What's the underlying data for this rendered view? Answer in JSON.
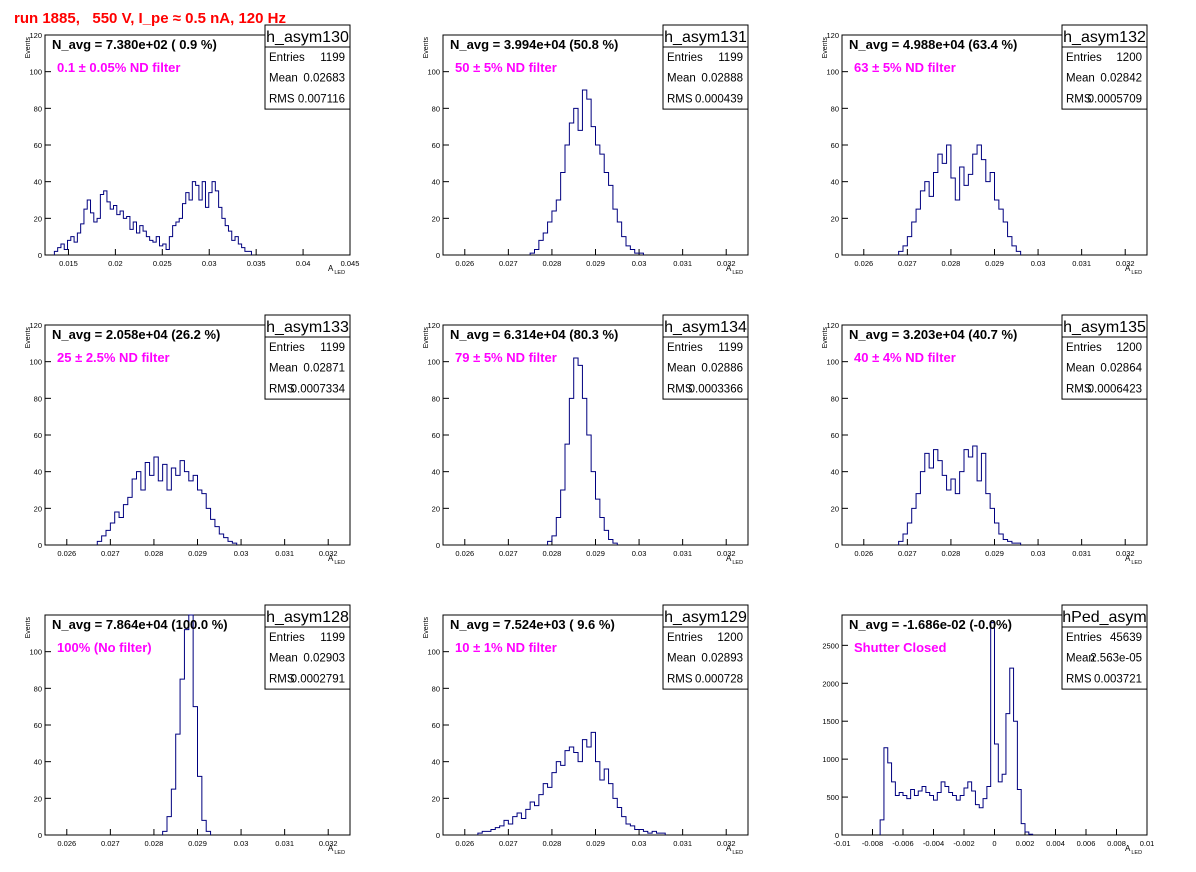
{
  "run_title": "run 1885,   550 V, I_pe ≈ 0.5 nA, 120 Hz",
  "colors": {
    "hist_line": "#00007f",
    "filter_label": "#ff00ff",
    "run_title": "#ff0000",
    "frame": "#000000"
  },
  "chart_data": [
    {
      "type": "bar",
      "hist_name": "h_asym130",
      "navg": "N_avg = 7.380e+02 ( 0.9 %)",
      "filter": "0.1 ± 0.05% ND filter",
      "stats": [
        {
          "label": "Entries",
          "value": "1199"
        },
        {
          "label": "Mean",
          "value": "0.02683"
        },
        {
          "label": "RMS",
          "value": "0.007116"
        }
      ],
      "xlabel": "A",
      "xlabel_sub": "LED",
      "ylabel": "Events",
      "xlim": [
        0.0125,
        0.045
      ],
      "ylim": [
        0,
        120
      ],
      "xticks": [
        0.015,
        0.02,
        0.025,
        0.03,
        0.035,
        0.04,
        0.045
      ],
      "xtick_labels": [
        "0.015",
        "0.02",
        "0.025",
        "0.03",
        "0.035",
        "0.04",
        "0.045"
      ],
      "yticks": [
        0,
        20,
        40,
        60,
        80,
        100,
        120
      ],
      "ytick_labels": [
        "0",
        "20",
        "40",
        "60",
        "80",
        "100",
        "120"
      ],
      "bin_start": 0.0135,
      "bin_width": 0.00035,
      "values": [
        2,
        4,
        6,
        3,
        8,
        10,
        7,
        12,
        17,
        25,
        30,
        23,
        18,
        20,
        33,
        35,
        29,
        25,
        27,
        22,
        24,
        20,
        21,
        14,
        18,
        12,
        16,
        13,
        10,
        8,
        7,
        10,
        5,
        6,
        3,
        10,
        16,
        18,
        20,
        28,
        34,
        30,
        40,
        38,
        30,
        40,
        26,
        34,
        40,
        35,
        26,
        20,
        16,
        13,
        8,
        10,
        6,
        4,
        2,
        2
      ]
    },
    {
      "type": "bar",
      "hist_name": "h_asym131",
      "navg": "N_avg = 3.994e+04 (50.8 %)",
      "filter": "50 ± 5% ND filter",
      "stats": [
        {
          "label": "Entries",
          "value": "1199"
        },
        {
          "label": "Mean",
          "value": "0.02888"
        },
        {
          "label": "RMS",
          "value": "0.000439"
        }
      ],
      "xlabel": "A",
      "xlabel_sub": "LED",
      "ylabel": "Events",
      "xlim": [
        0.0255,
        0.0325
      ],
      "ylim": [
        0,
        120
      ],
      "xticks": [
        0.026,
        0.027,
        0.028,
        0.029,
        0.03,
        0.031,
        0.032
      ],
      "xtick_labels": [
        "0.026",
        "0.027",
        "0.028",
        "0.029",
        "0.03",
        "0.031",
        "0.032"
      ],
      "yticks": [
        0,
        20,
        40,
        60,
        80,
        100
      ],
      "ytick_labels": [
        "0",
        "20",
        "40",
        "60",
        "80",
        "100"
      ],
      "bin_start": 0.0275,
      "bin_width": 0.0001,
      "values": [
        1,
        3,
        8,
        12,
        18,
        24,
        30,
        45,
        60,
        72,
        80,
        68,
        90,
        85,
        70,
        60,
        55,
        45,
        38,
        25,
        18,
        10,
        5,
        3,
        1,
        1
      ]
    },
    {
      "type": "bar",
      "hist_name": "h_asym132",
      "navg": "N_avg = 4.988e+04 (63.4 %)",
      "filter": "63 ± 5% ND filter",
      "stats": [
        {
          "label": "Entries",
          "value": "1200"
        },
        {
          "label": "Mean",
          "value": "0.02842"
        },
        {
          "label": "RMS",
          "value": "0.0005709"
        }
      ],
      "xlabel": "A",
      "xlabel_sub": "LED",
      "ylabel": "Events",
      "xlim": [
        0.0255,
        0.0325
      ],
      "ylim": [
        0,
        120
      ],
      "xticks": [
        0.026,
        0.027,
        0.028,
        0.029,
        0.03,
        0.031,
        0.032
      ],
      "xtick_labels": [
        "0.026",
        "0.027",
        "0.028",
        "0.029",
        "0.03",
        "0.031",
        "0.032"
      ],
      "yticks": [
        0,
        20,
        40,
        60,
        80,
        100,
        120
      ],
      "ytick_labels": [
        "0",
        "20",
        "40",
        "60",
        "80",
        "100",
        "120"
      ],
      "bin_start": 0.0268,
      "bin_width": 0.0001,
      "values": [
        2,
        5,
        10,
        18,
        25,
        35,
        40,
        32,
        45,
        55,
        50,
        60,
        42,
        30,
        48,
        38,
        44,
        55,
        60,
        52,
        40,
        45,
        30,
        25,
        18,
        10,
        5,
        2
      ]
    },
    {
      "type": "bar",
      "hist_name": "h_asym133",
      "navg": "N_avg = 2.058e+04 (26.2 %)",
      "filter": "25 ± 2.5% ND filter",
      "stats": [
        {
          "label": "Entries",
          "value": "1199"
        },
        {
          "label": "Mean",
          "value": "0.02871"
        },
        {
          "label": "RMS",
          "value": "0.0007334"
        }
      ],
      "xlabel": "A",
      "xlabel_sub": "LED",
      "ylabel": "Events",
      "xlim": [
        0.0255,
        0.0325
      ],
      "ylim": [
        0,
        120
      ],
      "xticks": [
        0.026,
        0.027,
        0.028,
        0.029,
        0.03,
        0.031,
        0.032
      ],
      "xtick_labels": [
        "0.026",
        "0.027",
        "0.028",
        "0.029",
        "0.03",
        "0.031",
        "0.032"
      ],
      "yticks": [
        0,
        20,
        40,
        60,
        80,
        100,
        120
      ],
      "ytick_labels": [
        "0",
        "20",
        "40",
        "60",
        "80",
        "100",
        "120"
      ],
      "bin_start": 0.0267,
      "bin_width": 0.0001,
      "values": [
        2,
        5,
        8,
        12,
        18,
        15,
        22,
        26,
        36,
        40,
        30,
        45,
        38,
        48,
        35,
        44,
        30,
        42,
        38,
        46,
        40,
        35,
        38,
        30,
        28,
        20,
        14,
        10,
        6,
        4,
        2,
        1
      ]
    },
    {
      "type": "bar",
      "hist_name": "h_asym134",
      "navg": "N_avg = 6.314e+04 (80.3 %)",
      "filter": "79 ± 5% ND filter",
      "stats": [
        {
          "label": "Entries",
          "value": "1199"
        },
        {
          "label": "Mean",
          "value": "0.02886"
        },
        {
          "label": "RMS",
          "value": "0.0003366"
        }
      ],
      "xlabel": "A",
      "xlabel_sub": "LED",
      "ylabel": "Events",
      "xlim": [
        0.0255,
        0.0325
      ],
      "ylim": [
        0,
        120
      ],
      "xticks": [
        0.026,
        0.027,
        0.028,
        0.029,
        0.03,
        0.031,
        0.032
      ],
      "xtick_labels": [
        "0.026",
        "0.027",
        "0.028",
        "0.029",
        "0.03",
        "0.031",
        "0.032"
      ],
      "yticks": [
        0,
        20,
        40,
        60,
        80,
        100,
        120
      ],
      "ytick_labels": [
        "0",
        "20",
        "40",
        "60",
        "80",
        "100",
        "120"
      ],
      "bin_start": 0.0279,
      "bin_width": 0.0001,
      "values": [
        2,
        5,
        15,
        30,
        55,
        80,
        102,
        98,
        80,
        60,
        40,
        25,
        15,
        8,
        3,
        1
      ]
    },
    {
      "type": "bar",
      "hist_name": "h_asym135",
      "navg": "N_avg = 3.203e+04 (40.7 %)",
      "filter": "40 ± 4% ND filter",
      "stats": [
        {
          "label": "Entries",
          "value": "1200"
        },
        {
          "label": "Mean",
          "value": "0.02864"
        },
        {
          "label": "RMS",
          "value": "0.0006423"
        }
      ],
      "xlabel": "A",
      "xlabel_sub": "LED",
      "ylabel": "Events",
      "xlim": [
        0.0255,
        0.0325
      ],
      "ylim": [
        0,
        120
      ],
      "xticks": [
        0.026,
        0.027,
        0.028,
        0.029,
        0.03,
        0.031,
        0.032
      ],
      "xtick_labels": [
        "0.026",
        "0.027",
        "0.028",
        "0.029",
        "0.03",
        "0.031",
        "0.032"
      ],
      "yticks": [
        0,
        20,
        40,
        60,
        80,
        100,
        120
      ],
      "ytick_labels": [
        "0",
        "20",
        "40",
        "60",
        "80",
        "100",
        "120"
      ],
      "bin_start": 0.0268,
      "bin_width": 0.0001,
      "values": [
        2,
        6,
        12,
        20,
        28,
        40,
        50,
        42,
        52,
        46,
        38,
        30,
        36,
        28,
        40,
        52,
        48,
        54,
        35,
        50,
        28,
        20,
        12,
        6,
        3,
        2,
        1,
        1
      ]
    },
    {
      "type": "bar",
      "hist_name": "h_asym128",
      "navg": "N_avg = 7.864e+04 (100.0 %)",
      "filter": "100% (No filter)",
      "stats": [
        {
          "label": "Entries",
          "value": "1199"
        },
        {
          "label": "Mean",
          "value": "0.02903"
        },
        {
          "label": "RMS",
          "value": "0.0002791"
        }
      ],
      "xlabel": "A",
      "xlabel_sub": "LED",
      "ylabel": "Events",
      "xlim": [
        0.0255,
        0.0325
      ],
      "ylim": [
        0,
        120
      ],
      "xticks": [
        0.026,
        0.027,
        0.028,
        0.029,
        0.03,
        0.031,
        0.032
      ],
      "xtick_labels": [
        "0.026",
        "0.027",
        "0.028",
        "0.029",
        "0.03",
        "0.031",
        "0.032"
      ],
      "yticks": [
        0,
        20,
        40,
        60,
        80,
        100
      ],
      "ytick_labels": [
        "0",
        "20",
        "40",
        "60",
        "80",
        "100"
      ],
      "bin_start": 0.0282,
      "bin_width": 0.0001,
      "values": [
        2,
        10,
        25,
        55,
        85,
        112,
        122,
        70,
        32,
        8,
        2
      ]
    },
    {
      "type": "bar",
      "hist_name": "h_asym129",
      "navg": "N_avg = 7.524e+03 ( 9.6 %)",
      "filter": "10 ± 1% ND filter",
      "stats": [
        {
          "label": "Entries",
          "value": "1200"
        },
        {
          "label": "Mean",
          "value": "0.02893"
        },
        {
          "label": "RMS",
          "value": "0.000728"
        }
      ],
      "xlabel": "A",
      "xlabel_sub": "LED",
      "ylabel": "Events",
      "xlim": [
        0.0255,
        0.0325
      ],
      "ylim": [
        0,
        120
      ],
      "xticks": [
        0.026,
        0.027,
        0.028,
        0.029,
        0.03,
        0.031,
        0.032
      ],
      "xtick_labels": [
        "0.026",
        "0.027",
        "0.028",
        "0.029",
        "0.03",
        "0.031",
        "0.032"
      ],
      "yticks": [
        0,
        20,
        40,
        60,
        80,
        100
      ],
      "ytick_labels": [
        "0",
        "20",
        "40",
        "60",
        "80",
        "100"
      ],
      "bin_start": 0.0263,
      "bin_width": 0.0001,
      "values": [
        1,
        2,
        2,
        3,
        4,
        5,
        8,
        6,
        10,
        12,
        9,
        14,
        18,
        16,
        22,
        28,
        26,
        34,
        40,
        38,
        46,
        48,
        45,
        40,
        52,
        48,
        56,
        40,
        30,
        36,
        28,
        20,
        15,
        10,
        6,
        5,
        3,
        3,
        2,
        1,
        2,
        1,
        1
      ]
    },
    {
      "type": "bar",
      "hist_name": "hPed_asym",
      "navg": "N_avg = -1.686e-02 (-0.0%)",
      "filter": "Shutter Closed",
      "stats": [
        {
          "label": "Entries",
          "value": "45639"
        },
        {
          "label": "Mean",
          "value": "2.563e-05"
        },
        {
          "label": "RMS",
          "value": "0.003721"
        }
      ],
      "xlabel": "A",
      "xlabel_sub": "LED",
      "ylabel": "",
      "xlim": [
        -0.01,
        0.01
      ],
      "ylim": [
        0,
        2900
      ],
      "xticks": [
        -0.01,
        -0.008,
        -0.006,
        -0.004,
        -0.002,
        0,
        0.002,
        0.004,
        0.006,
        0.008,
        0.01
      ],
      "xtick_labels": [
        "-0.01",
        "-0.008",
        "-0.006",
        "-0.004",
        "-0.002",
        "0",
        "0.002",
        "0.004",
        "0.006",
        "0.008",
        "0.01"
      ],
      "yticks": [
        0,
        500,
        1000,
        1500,
        2000,
        2500
      ],
      "ytick_labels": [
        "0",
        "500",
        "1000",
        "1500",
        "2000",
        "2500"
      ],
      "bin_start": -0.0075,
      "bin_width": 0.00025,
      "values": [
        200,
        1150,
        950,
        700,
        520,
        560,
        520,
        480,
        600,
        520,
        580,
        640,
        560,
        520,
        460,
        560,
        700,
        640,
        560,
        520,
        460,
        520,
        620,
        700,
        580,
        400,
        360,
        480,
        640,
        2800,
        1200,
        700,
        800,
        1600,
        2200,
        1500,
        600,
        150,
        40,
        10
      ]
    }
  ]
}
